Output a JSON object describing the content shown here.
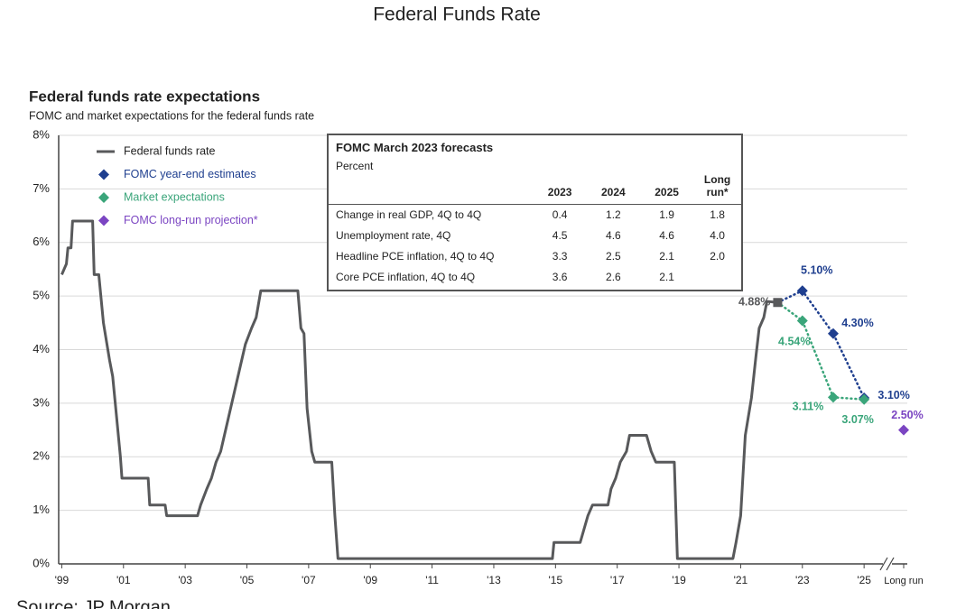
{
  "chart_data": {
    "type": "line",
    "page_title": "Federal Funds Rate",
    "title": "Federal funds rate expectations",
    "subtitle": "FOMC and market expectations for the federal funds rate",
    "source": "Source: JP Morgan",
    "xlim": [
      1998.9,
      2026.4
    ],
    "xticks": [
      {
        "value": 1999,
        "label": "'99"
      },
      {
        "value": 2001,
        "label": "'01"
      },
      {
        "value": 2003,
        "label": "'03"
      },
      {
        "value": 2005,
        "label": "'05"
      },
      {
        "value": 2007,
        "label": "'07"
      },
      {
        "value": 2009,
        "label": "'09"
      },
      {
        "value": 2011,
        "label": "'11"
      },
      {
        "value": 2013,
        "label": "'13"
      },
      {
        "value": 2015,
        "label": "'15"
      },
      {
        "value": 2017,
        "label": "'17"
      },
      {
        "value": 2019,
        "label": "'19"
      },
      {
        "value": 2021,
        "label": "'21"
      },
      {
        "value": 2023,
        "label": "'23"
      },
      {
        "value": 2025,
        "label": "'25"
      }
    ],
    "ylim": [
      0,
      8
    ],
    "yticks": [
      {
        "value": 0,
        "label": "0%"
      },
      {
        "value": 1,
        "label": "1%"
      },
      {
        "value": 2,
        "label": "2%"
      },
      {
        "value": 3,
        "label": "3%"
      },
      {
        "value": 4,
        "label": "4%"
      },
      {
        "value": 5,
        "label": "5%"
      },
      {
        "value": 6,
        "label": "6%"
      },
      {
        "value": 7,
        "label": "7%"
      },
      {
        "value": 8,
        "label": "8%"
      }
    ],
    "grid": true,
    "series": [
      {
        "name": "Federal funds rate",
        "color": "#58595b",
        "style": "line",
        "x": [
          1999.0,
          1999.15,
          1999.2,
          1999.3,
          1999.35,
          2000.0,
          2000.05,
          2000.2,
          2000.35,
          2000.55,
          2000.65,
          2000.8,
          2000.9,
          2000.95,
          2001.8,
          2001.85,
          2002.35,
          2002.4,
          2003.4,
          2003.5,
          2003.7,
          2003.85,
          2004.0,
          2004.15,
          2004.35,
          2004.55,
          2004.75,
          2004.95,
          2005.15,
          2005.3,
          2005.45,
          2006.65,
          2006.75,
          2006.85,
          2006.95,
          2007.1,
          2007.2,
          2007.75,
          2007.85,
          2007.95,
          2014.9,
          2014.95,
          2015.8,
          2015.9,
          2016.05,
          2016.2,
          2016.7,
          2016.8,
          2016.95,
          2017.1,
          2017.3,
          2017.4,
          2017.95,
          2018.1,
          2018.25,
          2018.85,
          2018.95,
          2020.75,
          2020.85,
          2021.0,
          2021.15,
          2021.35,
          2021.5,
          2021.6,
          2021.75,
          2021.85
        ],
        "values": [
          5.4,
          5.6,
          5.9,
          5.9,
          6.4,
          6.4,
          5.4,
          5.4,
          4.5,
          3.8,
          3.5,
          2.6,
          2.0,
          1.6,
          1.6,
          1.1,
          1.1,
          0.9,
          0.9,
          1.1,
          1.4,
          1.6,
          1.9,
          2.1,
          2.6,
          3.1,
          3.6,
          4.1,
          4.4,
          4.6,
          5.1,
          5.1,
          4.4,
          4.3,
          2.9,
          2.1,
          1.9,
          1.9,
          0.9,
          0.1,
          0.1,
          0.4,
          0.4,
          0.6,
          0.9,
          1.1,
          1.1,
          1.4,
          1.6,
          1.9,
          2.1,
          2.4,
          2.4,
          2.1,
          1.9,
          1.9,
          0.1,
          0.1,
          0.4,
          0.9,
          2.4,
          3.1,
          3.9,
          4.4,
          4.6,
          4.9
        ]
      },
      {
        "name": "FOMC year-end estimates",
        "color": "#1f3f8f",
        "style": "diamond",
        "x": [
          2023,
          2024,
          2025
        ],
        "values": [
          5.1,
          4.3,
          3.1
        ],
        "value_labels": [
          "5.10%",
          "4.30%",
          "3.10%"
        ]
      },
      {
        "name": "Market expectations",
        "color": "#3aa57a",
        "style": "diamond",
        "x": [
          2023,
          2024,
          2025
        ],
        "values": [
          4.54,
          3.11,
          3.07
        ],
        "value_labels": [
          "4.54%",
          "3.11%",
          "3.07%"
        ]
      },
      {
        "name": "FOMC long-run projection*",
        "color": "#7b45c2",
        "style": "diamond",
        "x": [
          "Long run"
        ],
        "values": [
          2.5
        ],
        "value_labels": [
          "2.50%"
        ]
      }
    ],
    "latest": {
      "x": 2022.2,
      "value": 4.88,
      "value_label": "4.88%"
    },
    "table": {
      "title": "FOMC March 2023 forecasts",
      "subtitle": "Percent",
      "columns": [
        "2023",
        "2024",
        "2025",
        "Long run*"
      ],
      "rows": [
        {
          "label": "Change in real GDP, 4Q to 4Q",
          "cells": [
            "0.4",
            "1.2",
            "1.9",
            "1.8"
          ]
        },
        {
          "label": "Unemployment rate, 4Q",
          "cells": [
            "4.5",
            "4.6",
            "4.6",
            "4.0"
          ]
        },
        {
          "label": "Headline PCE inflation, 4Q to 4Q",
          "cells": [
            "3.3",
            "2.5",
            "2.1",
            "2.0"
          ]
        },
        {
          "label": "Core PCE inflation, 4Q to 4Q",
          "cells": [
            "3.6",
            "2.6",
            "2.1"
          ]
        }
      ]
    }
  }
}
